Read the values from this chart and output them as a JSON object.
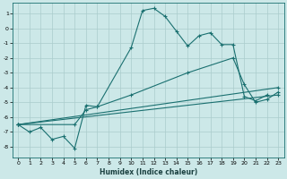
{
  "xlabel": "Humidex (Indice chaleur)",
  "background_color": "#cce8e8",
  "grid_color": "#aacccc",
  "line_color": "#1a7070",
  "xlim": [
    -0.5,
    23.5
  ],
  "ylim": [
    -8.7,
    1.7
  ],
  "yticks": [
    1,
    0,
    -1,
    -2,
    -3,
    -4,
    -5,
    -6,
    -7,
    -8
  ],
  "xticks": [
    0,
    1,
    2,
    3,
    4,
    5,
    6,
    7,
    8,
    9,
    10,
    11,
    12,
    13,
    14,
    15,
    16,
    17,
    18,
    19,
    20,
    21,
    22,
    23
  ],
  "series": [
    {
      "x": [
        0,
        1,
        2,
        3,
        4,
        5,
        6,
        7,
        10,
        11,
        12,
        13,
        14,
        15,
        16,
        17,
        18,
        19,
        20,
        21,
        22
      ],
      "y": [
        -6.5,
        -7.0,
        -6.7,
        -7.5,
        -7.3,
        -8.1,
        -5.2,
        -5.3,
        -1.3,
        1.2,
        1.35,
        0.8,
        -0.2,
        -1.2,
        -0.5,
        -0.3,
        -1.1,
        -1.1,
        -4.6,
        -4.9,
        -4.5
      ]
    },
    {
      "x": [
        0,
        5,
        6,
        7,
        10,
        15,
        19,
        20,
        21,
        22,
        23
      ],
      "y": [
        -6.5,
        -6.5,
        -5.5,
        -5.3,
        -4.5,
        -3.0,
        -2.0,
        -3.8,
        -5.0,
        -4.8,
        -4.3
      ]
    },
    {
      "x": [
        0,
        23
      ],
      "y": [
        -6.5,
        -4.0
      ]
    },
    {
      "x": [
        0,
        23
      ],
      "y": [
        -6.5,
        -4.5
      ]
    }
  ]
}
